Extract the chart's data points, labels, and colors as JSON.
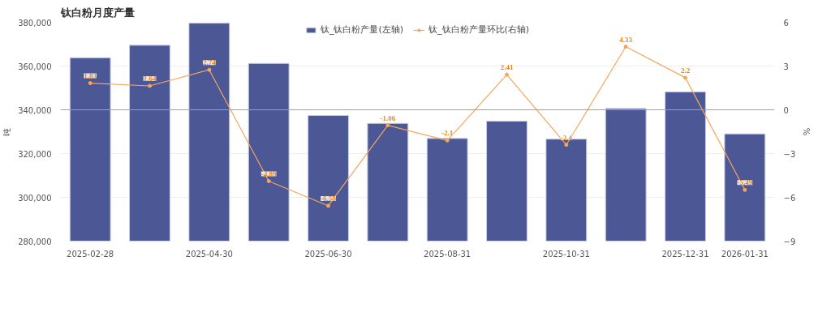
{
  "chart_data": {
    "type": "bar",
    "title": "钛白粉月度产量",
    "ylabel": "吨",
    "y2label": "%",
    "categories": [
      "2025-02-28",
      null,
      "2025-04-30",
      null,
      "2025-06-30",
      null,
      "2025-08-31",
      null,
      "2025-10-31",
      null,
      "2025-12-31",
      "2026-01-31"
    ],
    "series": [
      {
        "name": "钛_钛白粉产量(左轴)",
        "color": "#4c5796",
        "values": [
          363800,
          369500,
          379600,
          361200,
          337400,
          333800,
          326900,
          334800,
          326600,
          340600,
          348200,
          329000
        ]
      },
      {
        "name": "钛_钛白粉产量环比(右轴)",
        "type": "line",
        "axis": "y2",
        "color": "#f5a65b",
        "values": [
          1.83,
          1.64,
          2.74,
          -4.89,
          -6.58,
          -1.06,
          -2.1,
          2.41,
          -2.4,
          4.33,
          2.2,
          -5.49
        ],
        "value_labels": [
          "1.83",
          "1.64",
          "2.74",
          "-4.89",
          "-6.58",
          "-1.06",
          "-2.1",
          "2.41",
          "-2.4",
          "4.33",
          "2.2",
          "-5.49"
        ]
      }
    ],
    "ylim": [
      280000,
      380000
    ],
    "yticks": [
      {
        "value": 280000,
        "label": "280,000"
      },
      {
        "value": 300000,
        "label": "300,000"
      },
      {
        "value": 320000,
        "label": "320,000"
      },
      {
        "value": 340000,
        "label": "340,000"
      },
      {
        "value": 360000,
        "label": "360,000"
      },
      {
        "value": 380000,
        "label": "380,000"
      }
    ],
    "y2lim": [
      -9,
      6
    ],
    "y2ticks": [
      -9,
      -6,
      -3,
      0,
      3,
      6
    ],
    "ref_lines": [
      {
        "axis": "y2",
        "value": 0,
        "color": "#9aa0b4"
      }
    ],
    "grid": "y",
    "legend": "top",
    "marker": "circle"
  }
}
